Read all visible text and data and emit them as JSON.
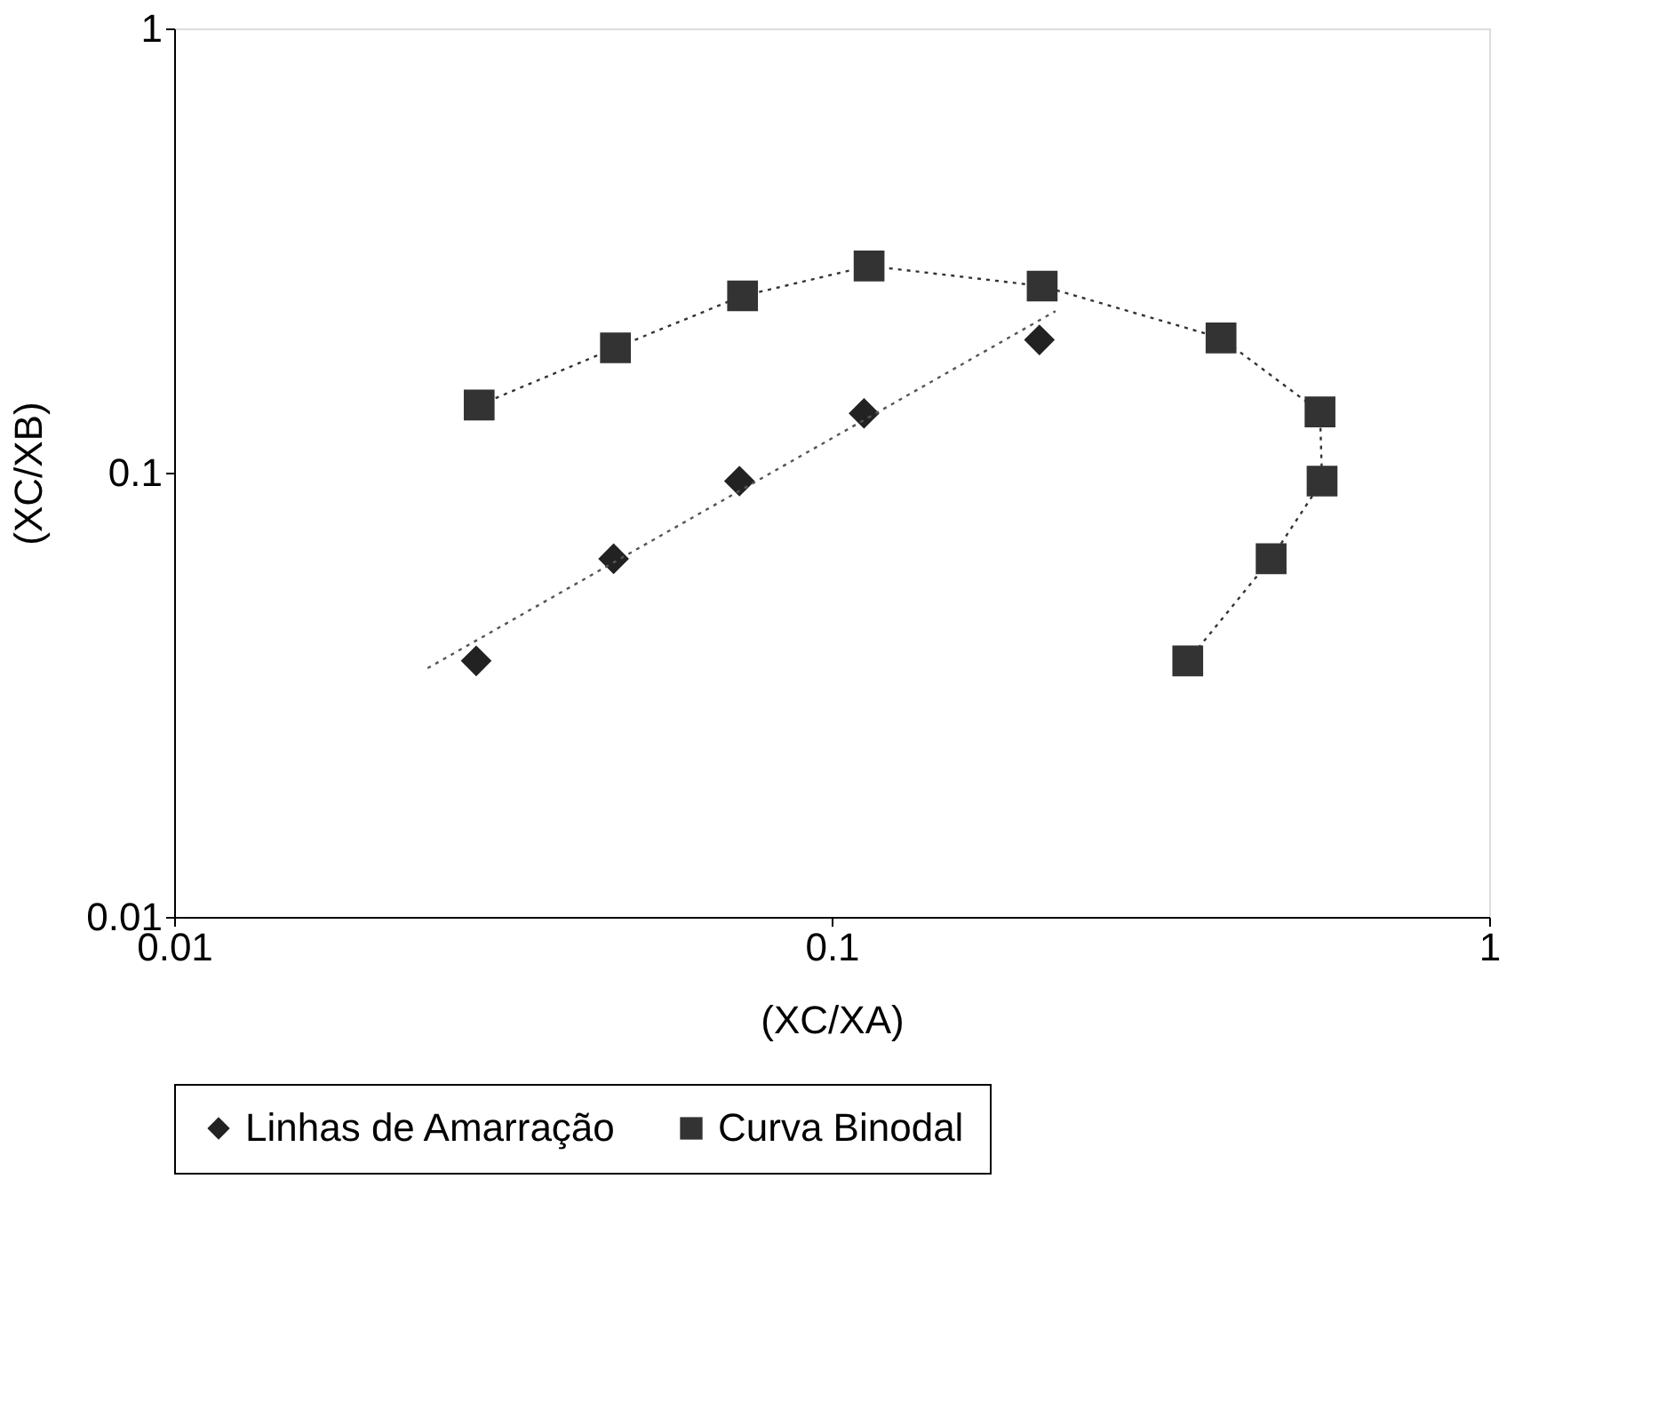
{
  "chart_data": {
    "type": "scatter",
    "xlabel": "(XC/XA)",
    "ylabel": "(XC/XB)",
    "log": "xy",
    "xlim": [
      0.01,
      1
    ],
    "ylim": [
      0.01,
      1
    ],
    "xticks": [
      0.01,
      0.1,
      1
    ],
    "yticks": [
      0.01,
      0.1,
      1
    ],
    "grid": false,
    "legend": "bottom",
    "series": [
      {
        "name": "Linhas de Amarração",
        "marker": "diamond",
        "color": "#222222",
        "x": [
          0.0288,
          0.0466,
          0.0724,
          0.112,
          0.207
        ],
        "values": [
          0.0377,
          0.064,
          0.0957,
          0.136,
          0.199
        ]
      },
      {
        "type": "line",
        "marker": "none",
        "line_style": "dotted",
        "color": "#555555",
        "x": [
          0.0243,
          0.219
        ],
        "values": [
          0.0363,
          0.231
        ]
      },
      {
        "name": "Curva Binodal",
        "type": "line",
        "marker": "square",
        "line_style": "dotted",
        "color": "#333333",
        "x": [
          0.0291,
          0.0469,
          0.0732,
          0.114,
          0.209,
          0.391,
          0.553,
          0.557,
          0.466,
          0.348
        ],
        "values": [
          0.142,
          0.191,
          0.25,
          0.292,
          0.263,
          0.201,
          0.137,
          0.0957,
          0.064,
          0.0377
        ]
      }
    ]
  }
}
